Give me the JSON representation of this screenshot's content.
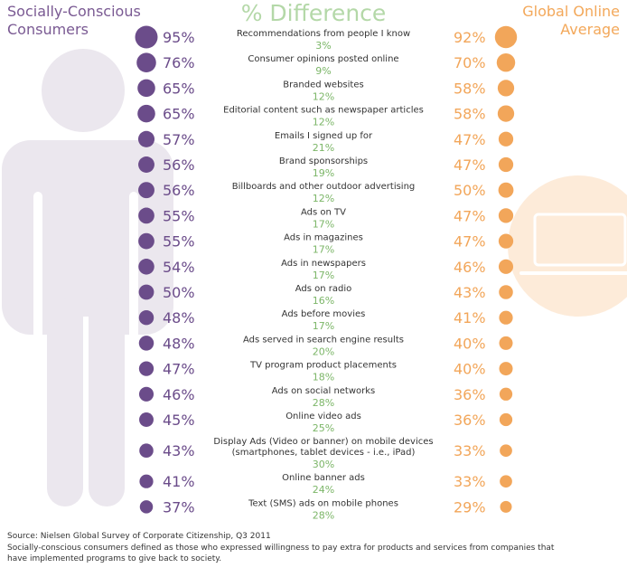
{
  "header": {
    "left_line1": "Socially-Conscious",
    "left_line2": "Consumers",
    "middle": "% Difference",
    "right_line1": "Global Online",
    "right_line2": "Average"
  },
  "colors": {
    "purple": "#6b4c8a",
    "orange": "#f2a65a",
    "green": "#7cb668",
    "silhouette": "#ebe7ee",
    "tv": "#fdebd9"
  },
  "chart_data": {
    "type": "table",
    "series": [
      {
        "name": "Socially-Conscious Consumers",
        "color": "#6b4c8a"
      },
      {
        "name": "Global Online Average",
        "color": "#f2a65a"
      }
    ],
    "rows": [
      {
        "label": [
          "Recommendations from people I know"
        ],
        "sc": 95,
        "diff": 3,
        "global": 92
      },
      {
        "label": [
          "Consumer opinions posted online"
        ],
        "sc": 76,
        "diff": 9,
        "global": 70
      },
      {
        "label": [
          "Branded websites"
        ],
        "sc": 65,
        "diff": 12,
        "global": 58
      },
      {
        "label": [
          "Editorial content such as newspaper articles"
        ],
        "sc": 65,
        "diff": 12,
        "global": 58
      },
      {
        "label": [
          "Emails I signed up for"
        ],
        "sc": 57,
        "diff": 21,
        "global": 47
      },
      {
        "label": [
          "Brand sponsorships"
        ],
        "sc": 56,
        "diff": 19,
        "global": 47
      },
      {
        "label": [
          "Billboards and other outdoor advertising"
        ],
        "sc": 56,
        "diff": 12,
        "global": 50
      },
      {
        "label": [
          "Ads on TV"
        ],
        "sc": 55,
        "diff": 17,
        "global": 47
      },
      {
        "label": [
          "Ads in magazines"
        ],
        "sc": 55,
        "diff": 17,
        "global": 47
      },
      {
        "label": [
          "Ads in newspapers"
        ],
        "sc": 54,
        "diff": 17,
        "global": 46
      },
      {
        "label": [
          "Ads on radio"
        ],
        "sc": 50,
        "diff": 16,
        "global": 43
      },
      {
        "label": [
          "Ads before movies"
        ],
        "sc": 48,
        "diff": 17,
        "global": 41
      },
      {
        "label": [
          "Ads served in search engine results"
        ],
        "sc": 48,
        "diff": 20,
        "global": 40
      },
      {
        "label": [
          "TV program product placements"
        ],
        "sc": 47,
        "diff": 18,
        "global": 40
      },
      {
        "label": [
          "Ads on social networks"
        ],
        "sc": 46,
        "diff": 28,
        "global": 36
      },
      {
        "label": [
          "Online video ads"
        ],
        "sc": 45,
        "diff": 25,
        "global": 36
      },
      {
        "label": [
          "Display Ads (Video or banner) on mobile devices",
          "(smartphones, tablet devices - i.e., iPad)"
        ],
        "sc": 43,
        "diff": 30,
        "global": 33
      },
      {
        "label": [
          "Online banner ads"
        ],
        "sc": 41,
        "diff": 24,
        "global": 33
      },
      {
        "label": [
          "Text (SMS) ads on mobile phones"
        ],
        "sc": 37,
        "diff": 28,
        "global": 29
      }
    ]
  },
  "footer": {
    "source": "Source: Nielsen Global Survey of Corporate Citizenship, Q3 2011",
    "note_line1": "Socially-conscious consumers defined as those who expressed willingness to pay extra for products and services from companies that",
    "note_line2": "have implemented programs to give back to society."
  }
}
